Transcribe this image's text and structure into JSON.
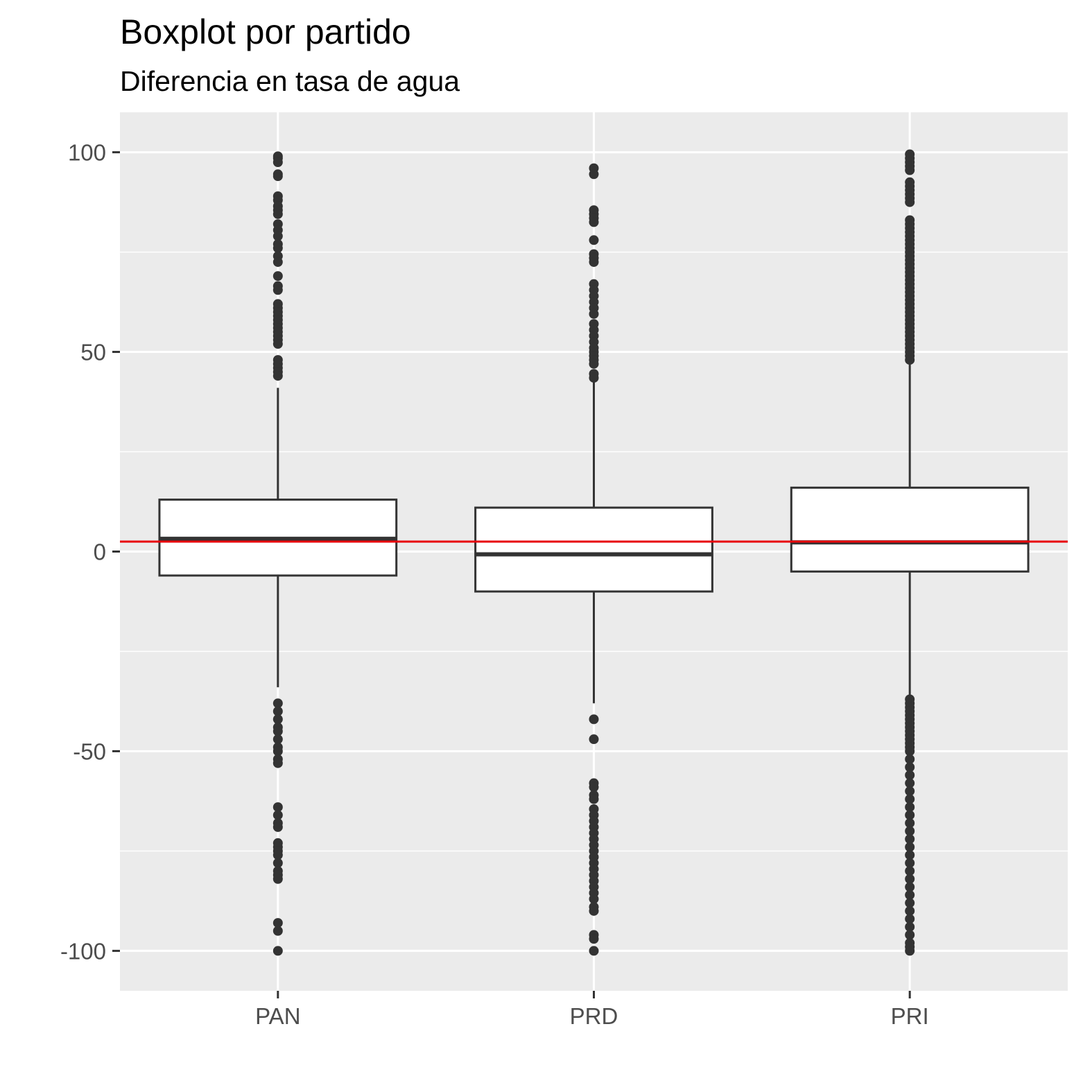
{
  "chart_data": {
    "type": "boxplot",
    "title": "Boxplot por partido",
    "subtitle": "Diferencia en tasa de agua",
    "xlabel": "",
    "ylabel": "",
    "ylim": [
      -110,
      110
    ],
    "y_ticks": [
      -100,
      -50,
      0,
      50,
      100
    ],
    "y_tick_labels": [
      "-100",
      "-50",
      "0",
      "50",
      "100"
    ],
    "grid": true,
    "legend": "none",
    "reference_line": {
      "y": 2.5,
      "color": "#e8000b"
    },
    "colors": {
      "panel": "#ebebeb",
      "grid": "#ffffff",
      "box_fill": "#ffffff",
      "box_line": "#333333",
      "point": "#333333"
    },
    "categories": [
      "PAN",
      "PRD",
      "PRI"
    ],
    "boxes": [
      {
        "category": "PAN",
        "whisker_low": -34,
        "q1": -6,
        "median": 3.2,
        "q3": 13,
        "whisker_high": 41,
        "outliers": [
          99,
          98.5,
          97.5,
          94.5,
          94,
          89,
          88,
          86.5,
          85.5,
          84.5,
          82,
          80.5,
          79,
          77,
          76,
          74,
          72.5,
          69,
          66.5,
          65.5,
          62,
          61,
          60,
          59,
          58,
          57,
          56,
          55,
          54,
          53,
          52,
          48,
          47,
          46,
          45,
          44,
          -38,
          -40,
          -42,
          -44,
          -45,
          -47,
          -49,
          -50,
          -52,
          -53,
          -64,
          -66,
          -68,
          -69,
          -73,
          -74,
          -75,
          -76,
          -78,
          -80,
          -81,
          -82,
          -93,
          -95,
          -100
        ]
      },
      {
        "category": "PRD",
        "whisker_low": -38,
        "q1": -10,
        "median": -0.7,
        "q3": 11,
        "whisker_high": 43,
        "outliers": [
          96,
          94.5,
          85.5,
          84.5,
          83.5,
          82.5,
          78,
          74.5,
          73.5,
          72.5,
          67,
          65.5,
          64,
          62.5,
          61,
          59.5,
          57,
          55.5,
          54,
          52.5,
          51,
          50,
          49,
          48,
          47,
          44.5,
          43.5,
          -42,
          -47,
          -58,
          -59,
          -61,
          -62,
          -64.5,
          -66,
          -67.5,
          -69,
          -70.5,
          -72,
          -73.5,
          -75,
          -76.5,
          -78,
          -79.5,
          -81,
          -82.5,
          -84,
          -85.5,
          -87,
          -89,
          -90,
          -96,
          -97,
          -100
        ]
      },
      {
        "category": "PRI",
        "whisker_low": -37,
        "q1": -5,
        "median": 2.3,
        "q3": 16,
        "whisker_high": 47.5,
        "outliers": [
          99.5,
          98.5,
          97.5,
          96.5,
          95.5,
          92.5,
          91.5,
          90.5,
          89.5,
          88.5,
          87.5,
          83,
          82,
          81,
          80,
          79,
          78,
          77,
          76,
          75,
          74,
          73,
          72,
          71,
          70,
          69,
          68,
          67,
          66,
          65,
          64,
          63,
          62,
          61,
          60,
          59,
          58,
          57,
          56,
          55,
          54,
          53,
          52,
          51,
          50,
          49,
          48,
          -37,
          -38,
          -39,
          -40,
          -41,
          -42,
          -43,
          -44,
          -45,
          -46,
          -47,
          -48,
          -49,
          -50,
          -52,
          -54,
          -56,
          -58,
          -60,
          -62,
          -64,
          -66,
          -68,
          -70,
          -72,
          -74,
          -76,
          -78,
          -80,
          -82,
          -84,
          -86,
          -88,
          -90,
          -92,
          -94,
          -96,
          -98,
          -99,
          -100
        ]
      }
    ]
  }
}
